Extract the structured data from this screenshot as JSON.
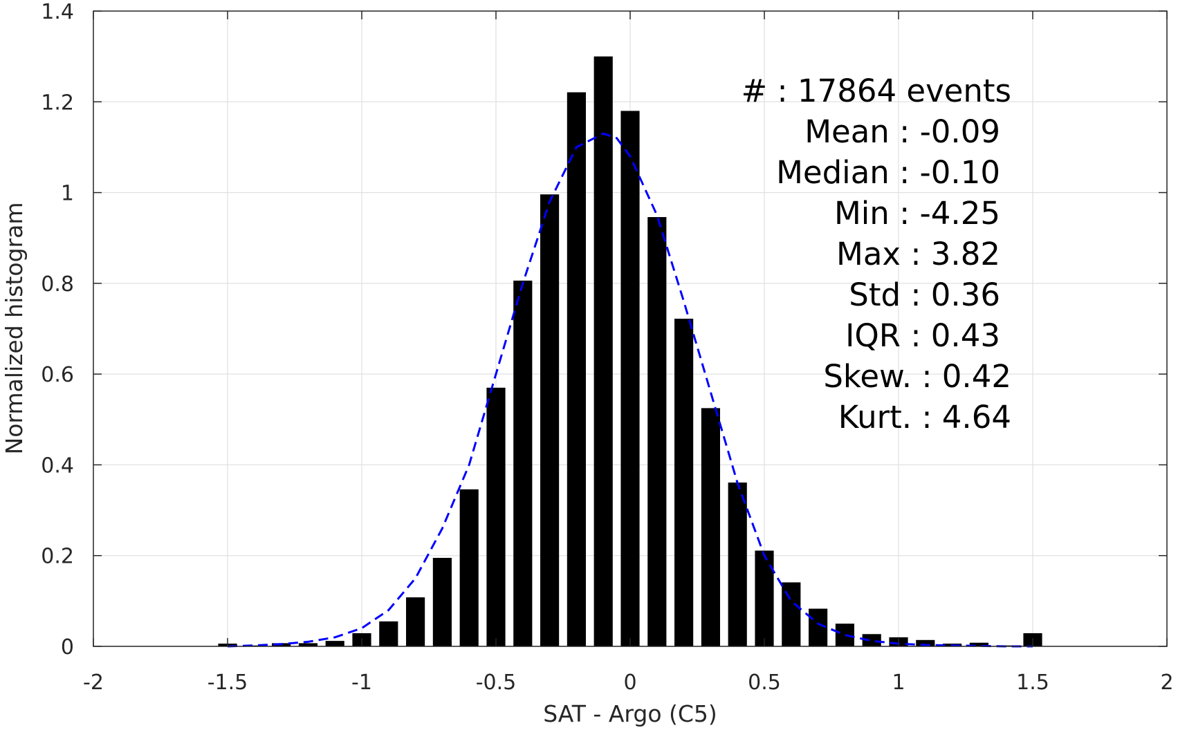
{
  "chart_data": {
    "type": "bar",
    "xlabel": "SAT - Argo (C5)",
    "ylabel": "Normalized histogram",
    "xlim": [
      -2,
      2
    ],
    "ylim": [
      0,
      1.4
    ],
    "xticks": [
      -2,
      -1.5,
      -1,
      -0.5,
      0,
      0.5,
      1,
      1.5,
      2
    ],
    "xtick_labels": [
      "-2",
      "-1.5",
      "-1",
      "-0.5",
      "0",
      "0.5",
      "1",
      "1.5",
      "2"
    ],
    "yticks": [
      0,
      0.2,
      0.4,
      0.6,
      0.8,
      1,
      1.2,
      1.4
    ],
    "ytick_labels": [
      "0",
      "0.2",
      "0.4",
      "0.6",
      "0.8",
      "1",
      "1.2",
      "1.4"
    ],
    "grid": true,
    "bar_color": "#000000",
    "bar_width": 0.07,
    "bins": {
      "x": [
        -1.5,
        -1.4,
        -1.3,
        -1.2,
        -1.1,
        -1.0,
        -0.9,
        -0.8,
        -0.7,
        -0.6,
        -0.5,
        -0.4,
        -0.3,
        -0.2,
        -0.1,
        0.0,
        0.1,
        0.2,
        0.3,
        0.4,
        0.5,
        0.6,
        0.7,
        0.8,
        0.9,
        1.0,
        1.1,
        1.2,
        1.3,
        1.4,
        1.5
      ],
      "values": [
        0.006,
        0.002,
        0.007,
        0.007,
        0.012,
        0.029,
        0.055,
        0.108,
        0.195,
        0.346,
        0.57,
        0.806,
        0.996,
        1.221,
        1.3,
        1.18,
        0.946,
        0.722,
        0.525,
        0.361,
        0.211,
        0.141,
        0.083,
        0.05,
        0.027,
        0.02,
        0.014,
        0.006,
        0.008,
        0.002,
        0.029
      ]
    },
    "fit_curve": {
      "color": "#0000ff",
      "style": "dashed",
      "x": [
        -1.5,
        -1.4,
        -1.3,
        -1.2,
        -1.1,
        -1.0,
        -0.9,
        -0.8,
        -0.7,
        -0.6,
        -0.5,
        -0.4,
        -0.3,
        -0.2,
        -0.1,
        -0.05,
        0.0,
        0.1,
        0.2,
        0.3,
        0.4,
        0.5,
        0.6,
        0.7,
        0.8,
        0.9,
        1.0,
        1.1,
        1.2,
        1.3,
        1.4,
        1.5
      ],
      "y": [
        0.0,
        0.002,
        0.005,
        0.01,
        0.02,
        0.04,
        0.08,
        0.15,
        0.26,
        0.4,
        0.6,
        0.8,
        0.98,
        1.1,
        1.13,
        1.12,
        1.08,
        0.95,
        0.76,
        0.56,
        0.36,
        0.2,
        0.1,
        0.05,
        0.025,
        0.012,
        0.006,
        0.003,
        0.002,
        0.001,
        0.0,
        0.0
      ]
    }
  },
  "stats": [
    {
      "label": "#  ",
      "value": ": 17864 events"
    },
    {
      "label": "Mean ",
      "value": ": -0.09"
    },
    {
      "label": "Median ",
      "value": ": -0.10"
    },
    {
      "label": "Min ",
      "value": ": -4.25"
    },
    {
      "label": "Max ",
      "value": ": 3.82"
    },
    {
      "label": "Std ",
      "value": ": 0.36"
    },
    {
      "label": "IQR ",
      "value": ": 0.43"
    },
    {
      "label": "Skew. ",
      "value": ": 0.42"
    },
    {
      "label": "Kurt. ",
      "value": ": 4.64"
    }
  ],
  "stats_text": [
    "#  : 17864 events",
    "Mean : -0.09",
    "Median : -0.10",
    "Min : -4.25",
    "Max : 3.82",
    "Std : 0.36",
    "IQR : 0.43",
    "Skew. : 0.42",
    "Kurt. : 4.64"
  ]
}
